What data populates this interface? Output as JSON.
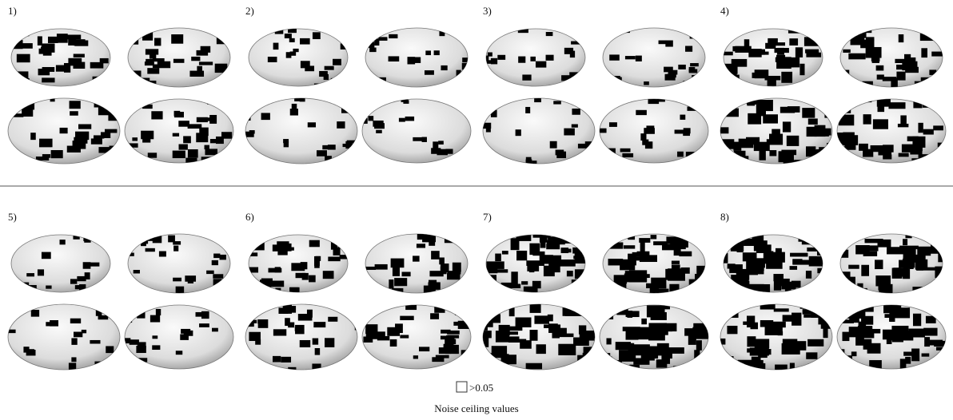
{
  "panels": [
    {
      "label": "1)"
    },
    {
      "label": "2)"
    },
    {
      "label": "3)"
    },
    {
      "label": "4)"
    },
    {
      "label": "5)"
    },
    {
      "label": "6)"
    },
    {
      "label": "7)"
    },
    {
      "label": "8)"
    }
  ],
  "legend": {
    "label": ">0.05"
  },
  "caption": "Noise ceiling values"
}
